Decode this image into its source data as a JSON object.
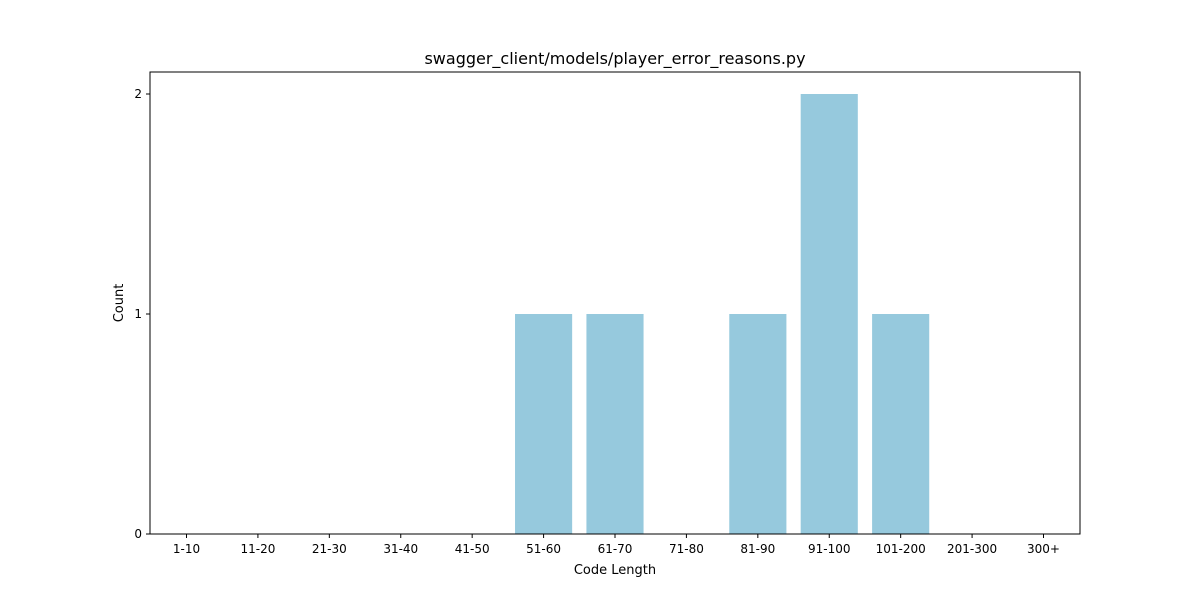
{
  "chart_data": {
    "type": "bar",
    "title": "swagger_client/models/player_error_reasons.py",
    "xlabel": "Code Length",
    "ylabel": "Count",
    "categories": [
      "1-10",
      "11-20",
      "21-30",
      "31-40",
      "41-50",
      "51-60",
      "61-70",
      "71-80",
      "81-90",
      "91-100",
      "101-200",
      "201-300",
      "300+"
    ],
    "values": [
      0,
      0,
      0,
      0,
      0,
      1,
      1,
      0,
      1,
      2,
      1,
      0,
      0
    ],
    "ylim": [
      0,
      2.1
    ],
    "yticks": [
      0,
      1,
      2
    ],
    "bar_color": "#96c9dd",
    "grid": false
  }
}
